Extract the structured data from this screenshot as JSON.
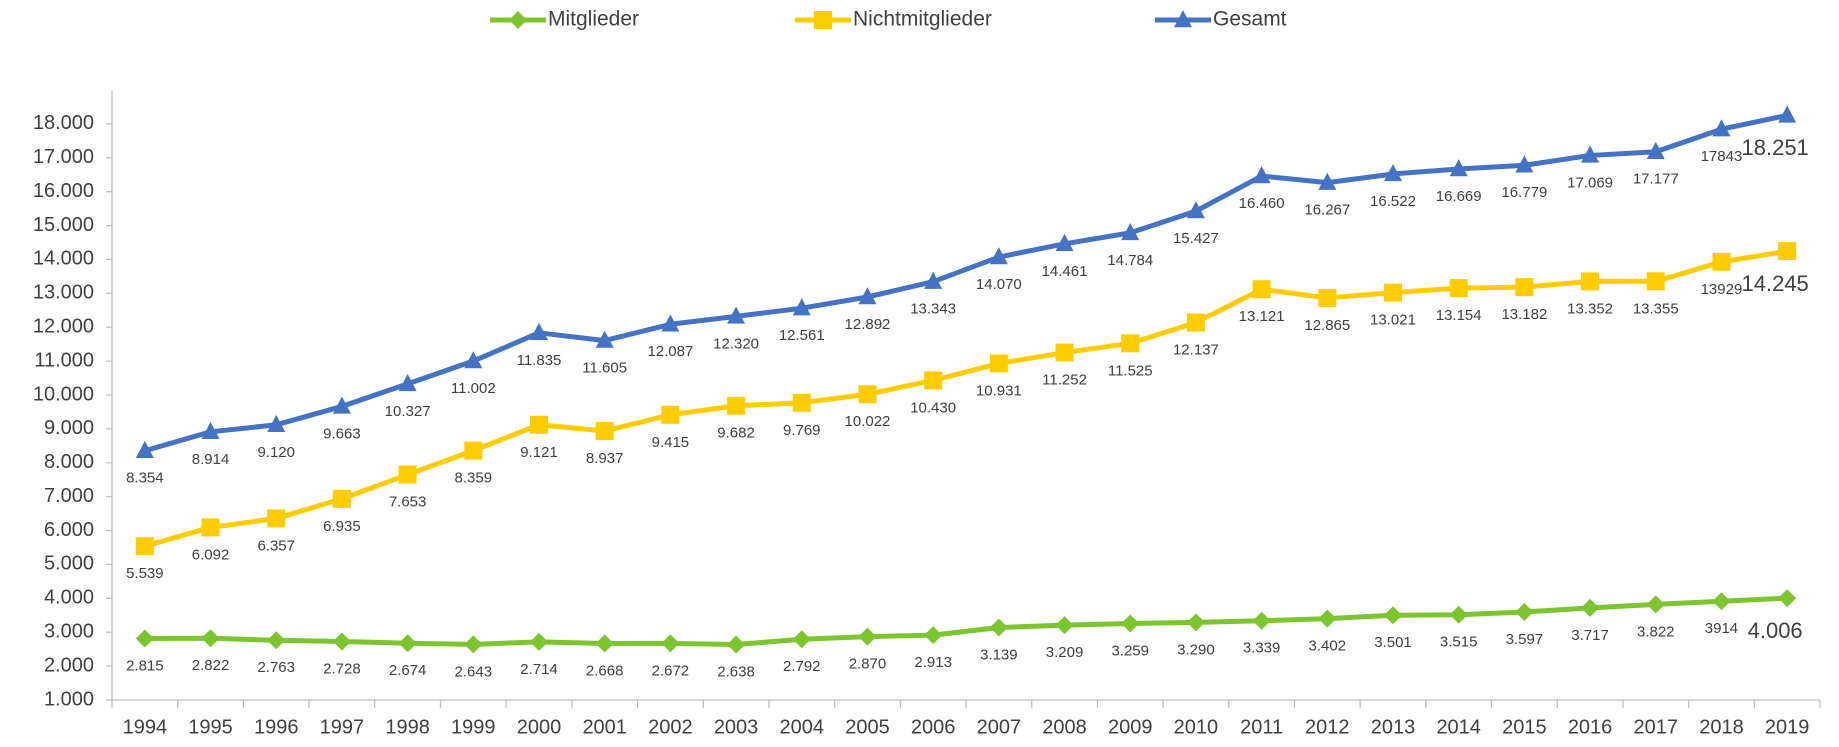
{
  "chart_data": {
    "type": "line",
    "categories": [
      "1994",
      "1995",
      "1996",
      "1997",
      "1998",
      "1999",
      "2000",
      "2001",
      "2002",
      "2003",
      "2004",
      "2005",
      "2006",
      "2007",
      "2008",
      "2009",
      "2010",
      "2011",
      "2012",
      "2013",
      "2014",
      "2015",
      "2016",
      "2017",
      "2018",
      "2019"
    ],
    "series": [
      {
        "name": "Mitglieder",
        "color": "#7dc52e",
        "marker": "diamond",
        "values": [
          2815,
          2822,
          2763,
          2728,
          2674,
          2643,
          2714,
          2668,
          2672,
          2638,
          2792,
          2870,
          2913,
          3139,
          3209,
          3259,
          3290,
          3339,
          3402,
          3501,
          3515,
          3597,
          3717,
          3822,
          3914,
          4006
        ],
        "value_labels": [
          "2.815",
          "2.822",
          "2.763",
          "2.728",
          "2.674",
          "2.643",
          "2.714",
          "2.668",
          "2.672",
          "2.638",
          "2.792",
          "2.870",
          "2.913",
          "3.139",
          "3.209",
          "3.259",
          "3.290",
          "3.339",
          "3.402",
          "3.501",
          "3.515",
          "3.597",
          "3.717",
          "3.822",
          "3914",
          "4.006"
        ]
      },
      {
        "name": "Nichtmitglieder",
        "color": "#ffcc00",
        "marker": "square",
        "values": [
          5539,
          6092,
          6357,
          6935,
          7653,
          8359,
          9121,
          8937,
          9415,
          9682,
          9769,
          10022,
          10430,
          10931,
          11252,
          11525,
          12137,
          13121,
          12865,
          13021,
          13154,
          13182,
          13352,
          13355,
          13929,
          14245
        ],
        "value_labels": [
          "5.539",
          "6.092",
          "6.357",
          "6.935",
          "7.653",
          "8.359",
          "9.121",
          "8.937",
          "9.415",
          "9.682",
          "9.769",
          "10.022",
          "10.430",
          "10.931",
          "11.252",
          "11.525",
          "12.137",
          "13.121",
          "12.865",
          "13.021",
          "13.154",
          "13.182",
          "13.352",
          "13.355",
          "13929",
          "14.245"
        ]
      },
      {
        "name": "Gesamt",
        "color": "#4472c4",
        "marker": "triangle",
        "values": [
          8354,
          8914,
          9120,
          9663,
          10327,
          11002,
          11835,
          11605,
          12087,
          12320,
          12561,
          12892,
          13343,
          14070,
          14461,
          14784,
          15427,
          16460,
          16267,
          16522,
          16669,
          16779,
          17069,
          17177,
          17843,
          18251
        ],
        "value_labels": [
          "8.354",
          "8.914",
          "9.120",
          "9.663",
          "10.327",
          "11.002",
          "11.835",
          "11.605",
          "12.087",
          "12.320",
          "12.561",
          "12.892",
          "13.343",
          "14.070",
          "14.461",
          "14.784",
          "15.427",
          "16.460",
          "16.267",
          "16.522",
          "16.669",
          "16.779",
          "17.069",
          "17.177",
          "17843",
          "18.251"
        ]
      }
    ],
    "ylim": [
      1000,
      19000
    ],
    "yticks": [
      {
        "value": 1000,
        "label": "1.000"
      },
      {
        "value": 2000,
        "label": "2.000"
      },
      {
        "value": 3000,
        "label": "3.000"
      },
      {
        "value": 4000,
        "label": "4.000"
      },
      {
        "value": 5000,
        "label": "5.000"
      },
      {
        "value": 6000,
        "label": "6.000"
      },
      {
        "value": 7000,
        "label": "7.000"
      },
      {
        "value": 8000,
        "label": "8.000"
      },
      {
        "value": 9000,
        "label": "9.000"
      },
      {
        "value": 10000,
        "label": "10.000"
      },
      {
        "value": 11000,
        "label": "11.000"
      },
      {
        "value": 12000,
        "label": "12.000"
      },
      {
        "value": 13000,
        "label": "13.000"
      },
      {
        "value": 14000,
        "label": "14.000"
      },
      {
        "value": 15000,
        "label": "15.000"
      },
      {
        "value": 16000,
        "label": "16.000"
      },
      {
        "value": 17000,
        "label": "17.000"
      },
      {
        "value": 18000,
        "label": "18.000"
      }
    ],
    "grid": false,
    "legend": "top"
  }
}
